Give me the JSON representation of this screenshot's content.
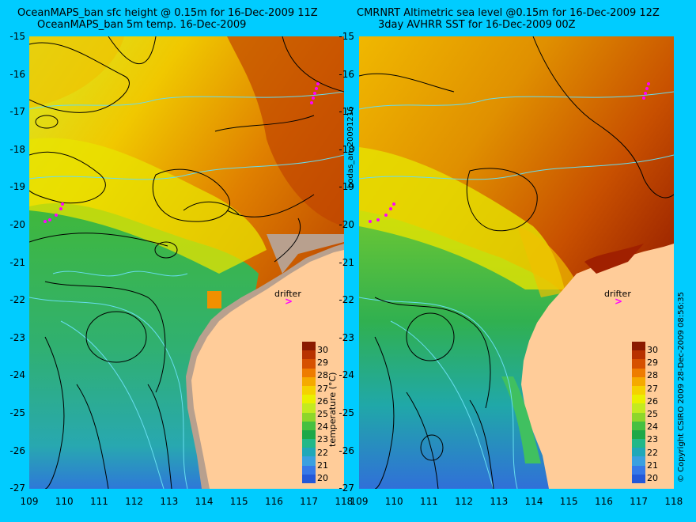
{
  "left_panel": {
    "title_line1": "OceanMAPS_ban sfc height @ 0.15m for 16-Dec-2009 11Z",
    "title_line2": "OceanMAPS_ban 5m temp. 16-Dec-2009",
    "drifter_label": "drifter",
    "drifter_marker": ">"
  },
  "right_panel": {
    "title_line1": "CMRNRT Altimetric sea level  @0.15m  for 16-Dec-2009 12Z",
    "title_line2": "3day AVHRR SST for 16-Dec-2009 00Z",
    "drifter_label": "drifter",
    "drifter_marker": ">"
  },
  "side_label_middle": "bodas_an_20091216",
  "side_label_right": "© Copyright CSIRO 2009   28-Dec-2009 08:56:35",
  "y_ticks": [
    "-15",
    "-16",
    "-17",
    "-18",
    "-19",
    "-20",
    "-21",
    "-22",
    "-23",
    "-24",
    "-25",
    "-26",
    "-27"
  ],
  "x_ticks": [
    "109",
    "110",
    "111",
    "112",
    "113",
    "114",
    "115",
    "116",
    "117",
    "118"
  ],
  "colorbar": {
    "label": "temperature (°C)",
    "ticks": [
      "30",
      "29",
      "28",
      "27",
      "26",
      "25",
      "24",
      "23",
      "22",
      "21",
      "20"
    ],
    "colors": [
      "#8b1a00",
      "#b83200",
      "#d65000",
      "#ee7c00",
      "#f5aa00",
      "#f5d200",
      "#eaf000",
      "#c4ea20",
      "#8ed62a",
      "#46c040",
      "#1ea848",
      "#22b888",
      "#20a8b8",
      "#3aa0e0",
      "#3678e8",
      "#2458d8"
    ]
  },
  "colors": {
    "background": "#00ccff",
    "land": "#ffcc99",
    "ocean_model_land_mask": "#b8a08e",
    "coast_contour": "#66ddee",
    "drifter": "#ff00ff"
  }
}
